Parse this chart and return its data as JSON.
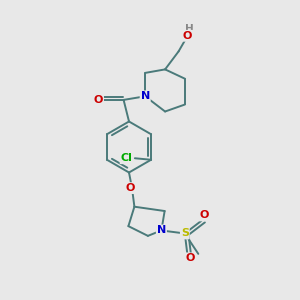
{
  "background_color": "#e8e8e8",
  "bond_color": "#4a7a7a",
  "atom_colors": {
    "O": "#cc0000",
    "N": "#0000cc",
    "Cl": "#00aa00",
    "S": "#bbbb00",
    "H": "#888888",
    "C": "#4a7a7a"
  },
  "figsize": [
    3.0,
    3.0
  ],
  "dpi": 100
}
